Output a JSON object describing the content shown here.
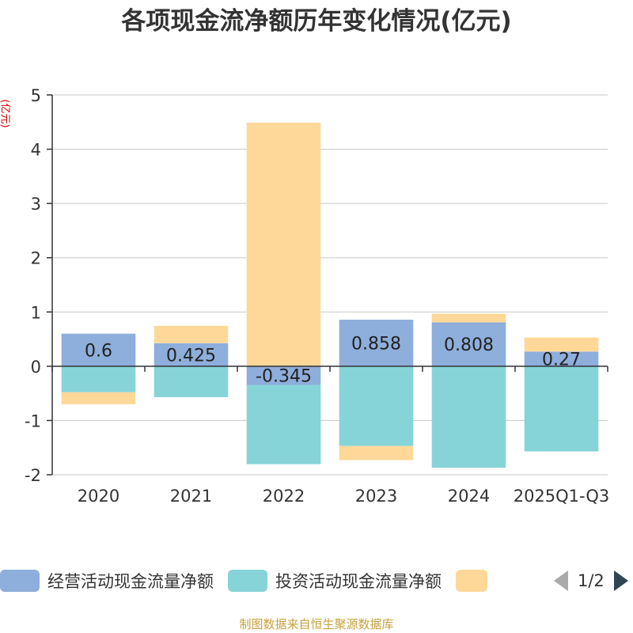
{
  "title": "各项现金流净额历年变化情况(亿元)",
  "unit": "(亿元)",
  "source": "制图数据来自恒生聚源数据库",
  "legend": {
    "items": [
      {
        "label": "经营活动现金流量净额",
        "color": "#8eaedb"
      },
      {
        "label": "投资活动现金流量净额",
        "color": "#86d4d8"
      },
      {
        "label": "",
        "color": "#fed899"
      }
    ],
    "page": "1/2"
  },
  "chart_data": {
    "type": "bar",
    "stacked": true,
    "categories": [
      "2020",
      "2021",
      "2022",
      "2023",
      "2024",
      "2025Q1-Q3"
    ],
    "ylim": [
      -2,
      5
    ],
    "yticks": [
      -2,
      -1,
      0,
      1,
      2,
      3,
      4,
      5
    ],
    "grid": true,
    "legend_position": "bottom",
    "series": [
      {
        "name": "经营活动现金流量净额",
        "color": "#8eaedb",
        "values": [
          0.6,
          0.425,
          -0.345,
          0.858,
          0.808,
          0.27
        ]
      },
      {
        "name": "投资活动现金流量净额",
        "color": "#86d4d8",
        "values": [
          -0.48,
          -0.57,
          -1.46,
          -1.47,
          -1.87,
          -1.57
        ]
      },
      {
        "color": "#fed899",
        "values": [
          -0.22,
          0.32,
          4.49,
          -0.26,
          0.16,
          0.26
        ]
      }
    ],
    "data_labels": [
      "0.6",
      "0.425",
      "-0.345",
      "0.858",
      "0.808",
      "0.27"
    ]
  }
}
